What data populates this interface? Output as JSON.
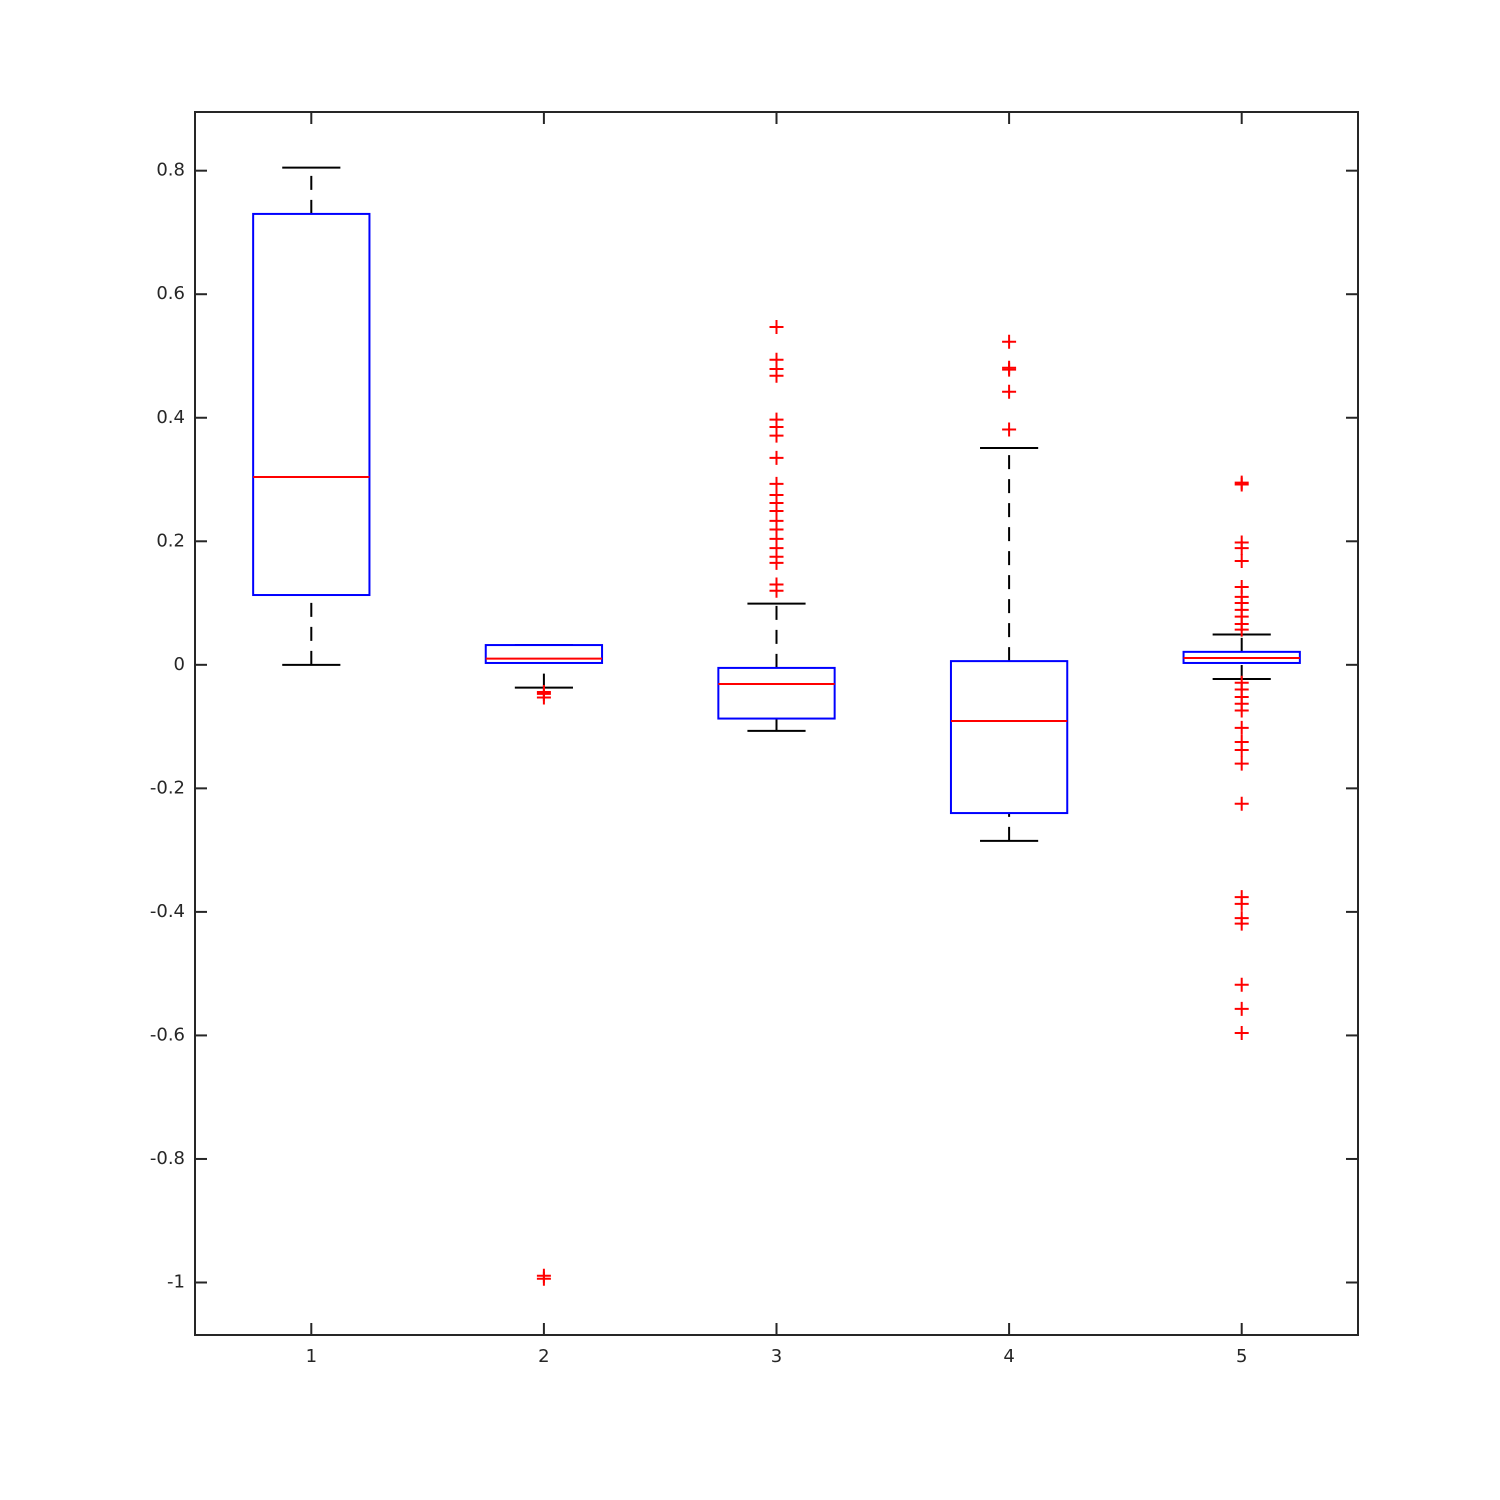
{
  "chart_data": {
    "type": "box",
    "categories": [
      "1",
      "2",
      "3",
      "4",
      "5"
    ],
    "xlim": [
      0.5,
      5.5
    ],
    "ylim": [
      -1.085,
      0.895
    ],
    "yticks": [
      -1,
      -0.8,
      -0.6,
      -0.4,
      -0.2,
      0,
      0.2,
      0.4,
      0.6,
      0.8
    ],
    "box_color": "#0000ff",
    "median_color": "#ff0000",
    "whisker_color": "#000000",
    "outlier_color": "#ff0000",
    "boxes": [
      {
        "low": 0,
        "q1": 0.113,
        "median": 0.304,
        "q3": 0.73,
        "high": 0.805,
        "outliers": []
      },
      {
        "low": -0.037,
        "q1": 0.003,
        "median": 0.01,
        "q3": 0.032,
        "high": 0.032,
        "outliers": [
          -0.044,
          -0.047,
          -0.053,
          -0.989,
          -0.994
        ]
      },
      {
        "low": -0.107,
        "q1": -0.087,
        "median": -0.031,
        "q3": -0.005,
        "high": 0.099,
        "outliers": [
          0.547,
          0.494,
          0.479,
          0.468,
          0.397,
          0.385,
          0.371,
          0.335,
          0.293,
          0.275,
          0.262,
          0.249,
          0.233,
          0.219,
          0.204,
          0.189,
          0.175,
          0.165,
          0.13,
          0.12
        ]
      },
      {
        "low": -0.285,
        "q1": -0.24,
        "median": -0.091,
        "q3": 0.006,
        "high": 0.351,
        "outliers": [
          0.523,
          0.481,
          0.478,
          0.442,
          0.381
        ]
      },
      {
        "low": -0.023,
        "q1": 0.003,
        "median": 0.011,
        "q3": 0.021,
        "high": 0.049,
        "outliers": [
          0.295,
          0.292,
          0.198,
          0.189,
          0.168,
          0.126,
          0.11,
          0.1,
          0.089,
          0.078,
          0.066,
          0.057,
          -0.029,
          -0.04,
          -0.052,
          -0.063,
          -0.074,
          -0.102,
          -0.125,
          -0.138,
          -0.16,
          -0.225,
          -0.376,
          -0.387,
          -0.41,
          -0.419,
          -0.518,
          -0.557,
          -0.596
        ]
      }
    ]
  }
}
